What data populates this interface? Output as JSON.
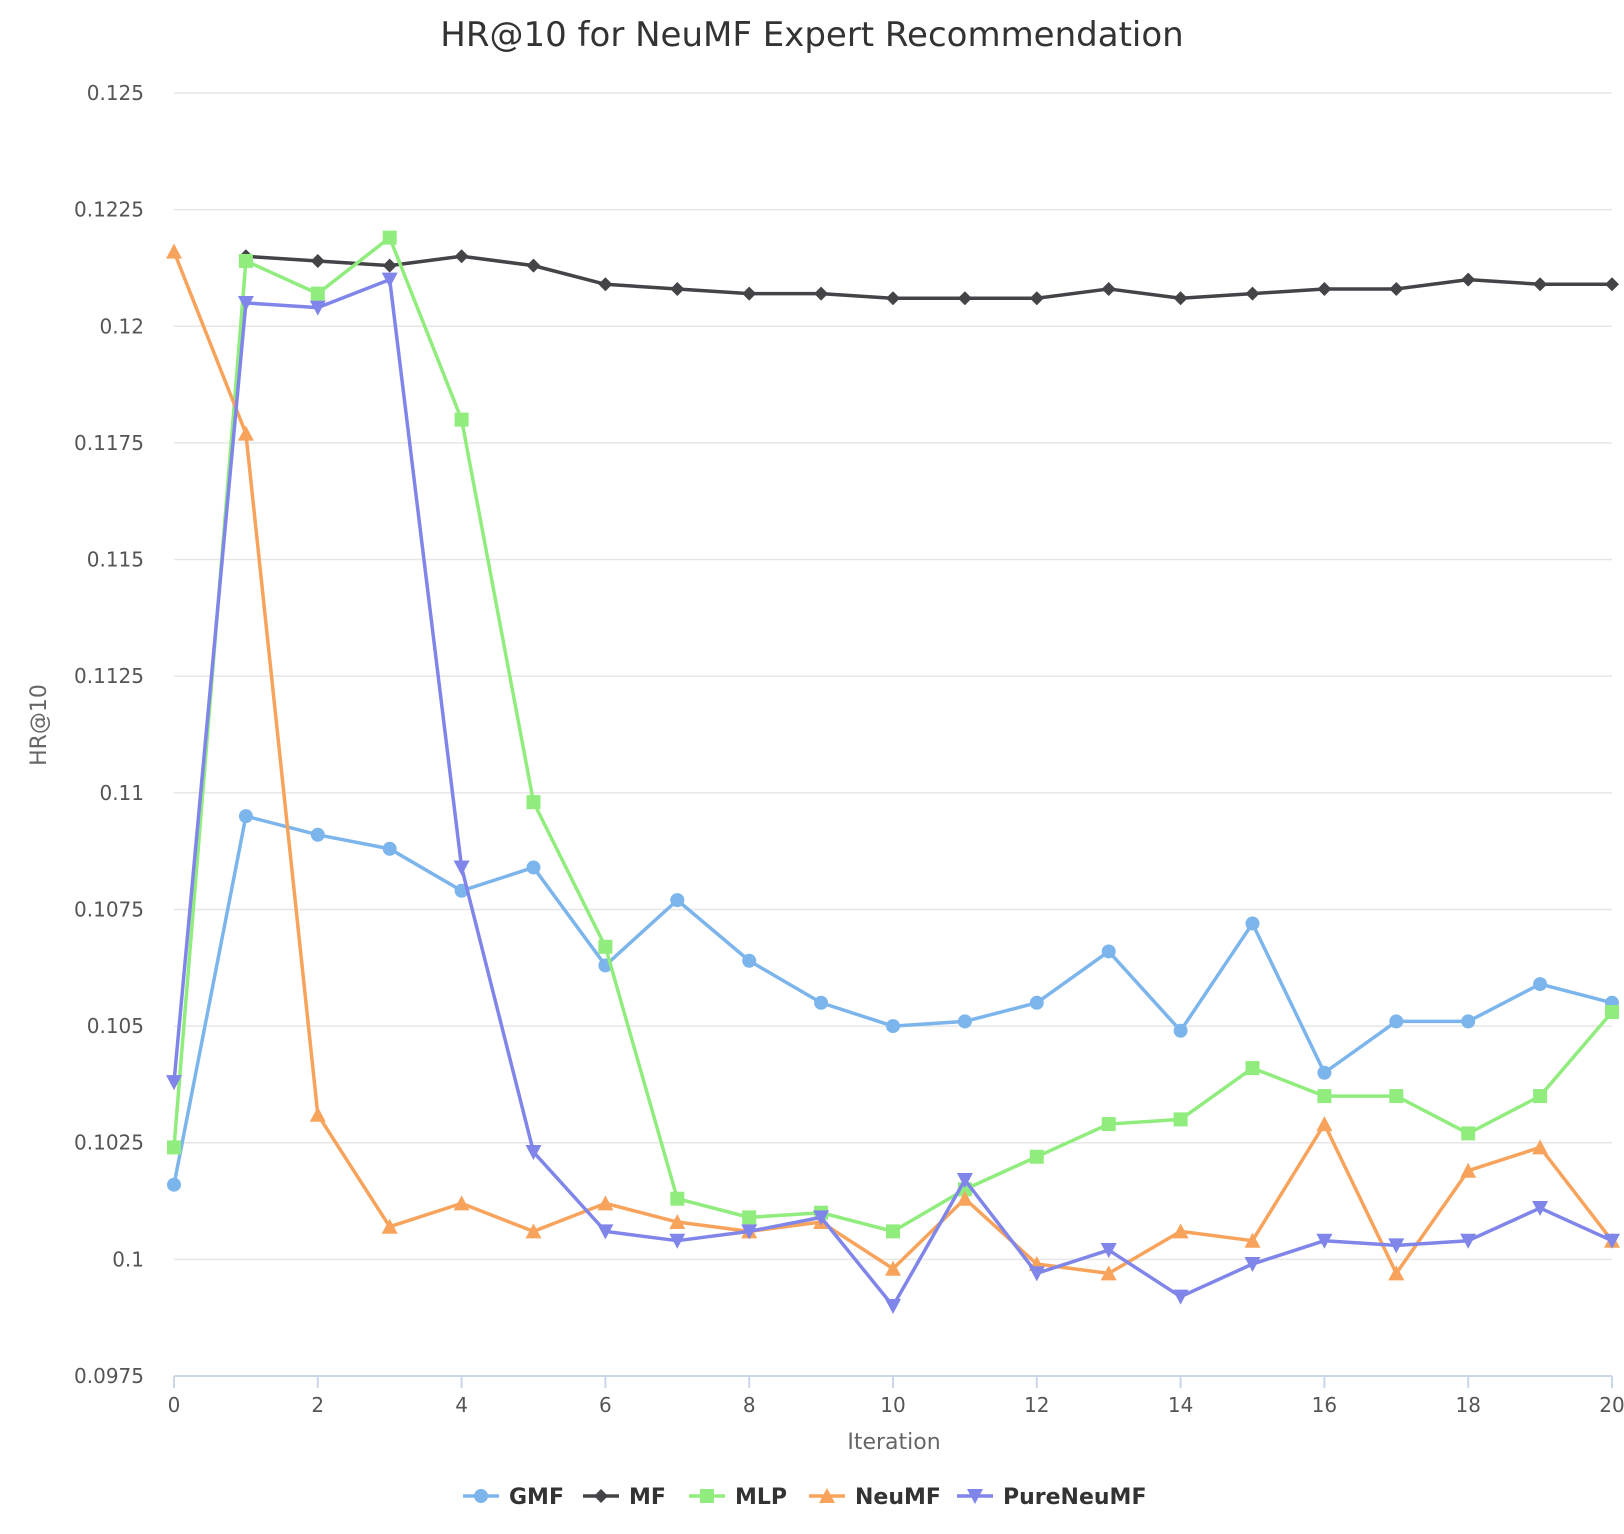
{
  "chart_data": {
    "type": "line",
    "title": "HR@10 for NeuMF Expert Recommendation",
    "xlabel": "Iteration",
    "ylabel": "HR@10",
    "xlim": [
      0,
      20
    ],
    "ylim": [
      0.0975,
      0.125
    ],
    "x_ticks": [
      "0",
      "2",
      "4",
      "6",
      "8",
      "10",
      "12",
      "14",
      "16",
      "18",
      "20"
    ],
    "y_ticks": [
      "0.0975",
      "0.1",
      "0.1025",
      "0.105",
      "0.1075",
      "0.11",
      "0.1125",
      "0.115",
      "0.1175",
      "0.12",
      "0.1225",
      "0.125"
    ],
    "grid": true,
    "legend_position": "bottom",
    "x": [
      0,
      1,
      2,
      3,
      4,
      5,
      6,
      7,
      8,
      9,
      10,
      11,
      12,
      13,
      14,
      15,
      16,
      17,
      18,
      19,
      20
    ],
    "series": [
      {
        "name": "GMF",
        "color": "#7cb5ec",
        "marker": "circle",
        "values": [
          0.1016,
          0.1095,
          0.1091,
          0.1088,
          0.1079,
          0.1084,
          0.1063,
          0.1077,
          0.1064,
          0.1055,
          0.105,
          0.1051,
          0.1055,
          0.1066,
          0.1049,
          0.1072,
          0.104,
          0.1051,
          0.1051,
          0.1059,
          0.1055
        ]
      },
      {
        "name": "MF",
        "color": "#434348",
        "marker": "diamond",
        "values": [
          null,
          0.1215,
          0.1214,
          0.1213,
          0.1215,
          0.1213,
          0.1209,
          0.1208,
          0.1207,
          0.1207,
          0.1206,
          0.1206,
          0.1206,
          0.1208,
          0.1206,
          0.1207,
          0.1208,
          0.1208,
          0.121,
          0.1209,
          0.1209
        ]
      },
      {
        "name": "MLP",
        "color": "#90ed7d",
        "marker": "square",
        "values": [
          0.1024,
          0.1214,
          0.1207,
          0.1219,
          0.118,
          0.1098,
          0.1067,
          0.1013,
          0.1009,
          0.101,
          0.1006,
          0.1015,
          0.1022,
          0.1029,
          0.103,
          0.1041,
          0.1035,
          0.1035,
          0.1027,
          0.1035,
          0.1053
        ]
      },
      {
        "name": "NeuMF",
        "color": "#f7a35c",
        "marker": "triangle",
        "values": [
          0.1216,
          0.1177,
          0.1031,
          0.1007,
          0.1012,
          0.1006,
          0.1012,
          0.1008,
          0.1006,
          0.1008,
          0.0998,
          0.1013,
          0.0999,
          0.0997,
          0.1006,
          0.1004,
          0.1029,
          0.0997,
          0.1019,
          0.1024,
          0.1004
        ]
      },
      {
        "name": "PureNeuMF",
        "color": "#8085e9",
        "marker": "triangle-down",
        "values": [
          0.1038,
          0.1205,
          0.1204,
          0.121,
          0.1084,
          0.1023,
          0.1006,
          0.1004,
          0.1006,
          0.1009,
          0.099,
          0.1017,
          0.0997,
          0.1002,
          0.0992,
          0.0999,
          0.1004,
          0.1003,
          0.1004,
          0.1011,
          0.1004
        ]
      }
    ]
  }
}
